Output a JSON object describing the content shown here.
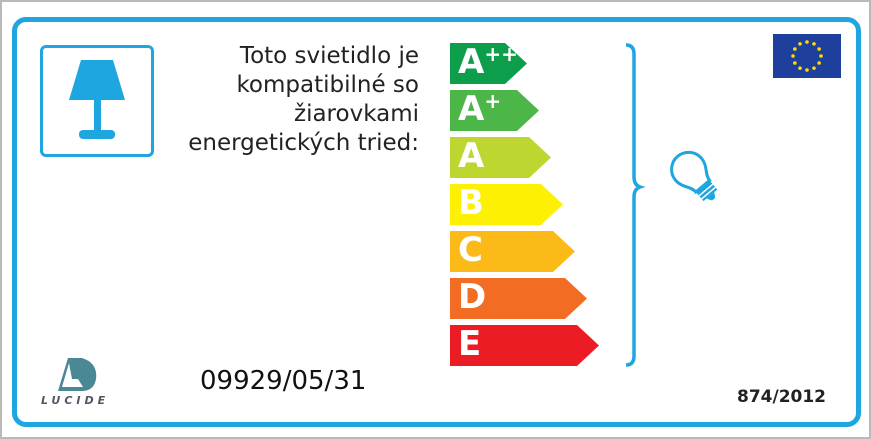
{
  "label": {
    "intro_lines": [
      "Toto svietidlo je",
      "kompatibilné so",
      "žiarovkami",
      "energetických tried:"
    ],
    "classes": [
      {
        "letter": "A",
        "sup": "++",
        "color": "#0d9e4b"
      },
      {
        "letter": "A",
        "sup": "+",
        "color": "#4cb748"
      },
      {
        "letter": "A",
        "sup": "",
        "color": "#bfd530"
      },
      {
        "letter": "B",
        "sup": "",
        "color": "#fdf003"
      },
      {
        "letter": "C",
        "sup": "",
        "color": "#fbba17"
      },
      {
        "letter": "D",
        "sup": "",
        "color": "#f26d23"
      },
      {
        "letter": "E",
        "sup": "",
        "color": "#ec1c24"
      }
    ],
    "model_number": "09929/05/31",
    "regulation": "874/2012",
    "brand": "LUCIDE",
    "accent_color": "#1ea6e0",
    "icons": [
      "lamp-icon",
      "eu-flag-icon",
      "bulb-icon",
      "brace-icon"
    ]
  }
}
